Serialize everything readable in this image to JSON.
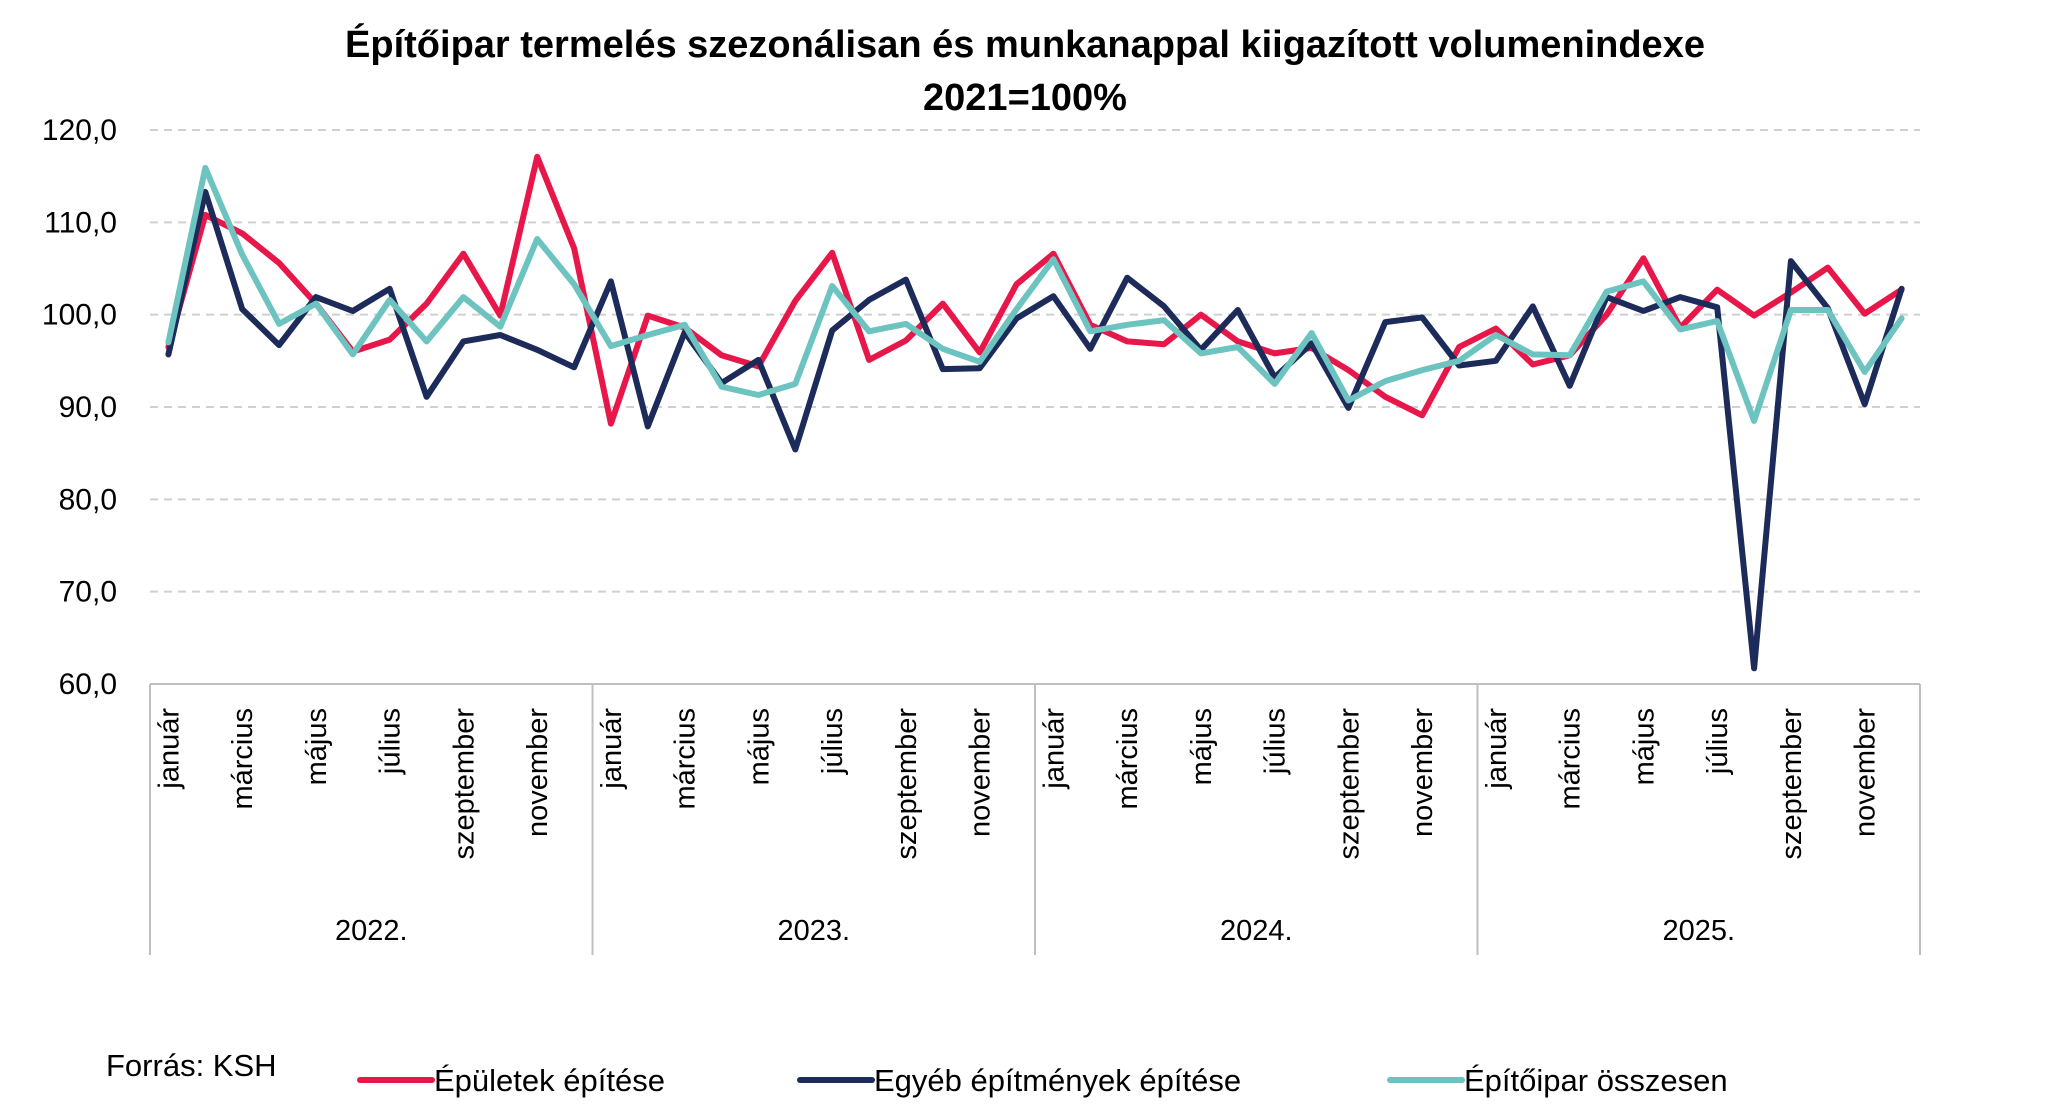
{
  "chart_data": {
    "type": "line",
    "title": "Építőipar termelés szezonálisan és munkanappal kiigazított volumenindexe",
    "subtitle": "2021=100%",
    "ylim": [
      60,
      120
    ],
    "y_ticks": [
      "60,0",
      "70,0",
      "80,0",
      "90,0",
      "100,0",
      "110,0",
      "120,0"
    ],
    "y_tick_values": [
      60,
      70,
      80,
      90,
      100,
      110,
      120
    ],
    "grid": "horizontal dashed",
    "legend_position": "bottom",
    "years": [
      "2022.",
      "2023.",
      "2024.",
      "2025."
    ],
    "x_tick_labels": [
      "január",
      "március",
      "május",
      "július",
      "szeptember",
      "november"
    ],
    "x_tick_month_index": [
      0,
      2,
      4,
      6,
      8,
      10
    ],
    "months_per_year": 12,
    "series": [
      {
        "name": "Épületek építése",
        "color": "#E8174A",
        "values": [
          96.5,
          110.8,
          108.8,
          105.6,
          101.2,
          96.0,
          97.3,
          101.2,
          106.6,
          99.9,
          117.1,
          107.2,
          88.2,
          99.9,
          98.6,
          95.6,
          94.4,
          101.5,
          106.7,
          95.1,
          97.2,
          101.2,
          95.9,
          103.3,
          106.6,
          98.9,
          97.1,
          96.8,
          100.0,
          97.1,
          95.8,
          96.4,
          94.0,
          91.1,
          89.1,
          96.5,
          98.5,
          94.6,
          95.6,
          100.0,
          106.1,
          98.6,
          102.7,
          99.9,
          102.4,
          105.1,
          100.1,
          102.7
        ]
      },
      {
        "name": "Egyéb építmények építése",
        "color": "#1C2B5A",
        "values": [
          95.7,
          113.3,
          100.6,
          96.7,
          101.9,
          100.4,
          102.8,
          91.1,
          97.1,
          97.8,
          96.2,
          94.3,
          103.6,
          87.9,
          98.1,
          92.6,
          95.1,
          85.4,
          98.3,
          101.6,
          103.8,
          94.1,
          94.2,
          99.6,
          102.0,
          96.3,
          104.0,
          100.9,
          96.2,
          100.5,
          93.2,
          96.9,
          89.9,
          99.2,
          99.7,
          94.5,
          95.0,
          100.9,
          92.3,
          101.9,
          100.4,
          101.9,
          100.8,
          61.7,
          105.8,
          100.7,
          90.3,
          102.8
        ]
      },
      {
        "name": "Építőipar összesen",
        "color": "#6CC3BF",
        "values": [
          97.0,
          115.9,
          106.5,
          99.0,
          101.2,
          95.7,
          101.6,
          97.1,
          101.9,
          98.7,
          108.2,
          103.3,
          96.6,
          97.8,
          98.9,
          92.2,
          91.3,
          92.5,
          103.1,
          98.2,
          99.0,
          96.3,
          94.9,
          100.6,
          106.0,
          98.2,
          98.9,
          99.4,
          95.8,
          96.5,
          92.5,
          98.0,
          90.7,
          92.8,
          94.0,
          95.0,
          97.8,
          95.7,
          95.6,
          102.5,
          103.6,
          98.4,
          99.3,
          88.5,
          100.5,
          100.5,
          93.8,
          99.6
        ]
      }
    ]
  },
  "source": "Forrás: KSH"
}
